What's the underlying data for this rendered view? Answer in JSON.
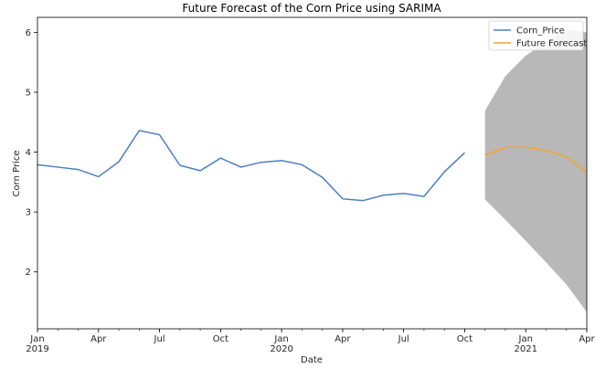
{
  "chart_data": {
    "type": "line",
    "title": "Future Forecast of the Corn Price using SARIMA",
    "xlabel": "Date",
    "ylabel": "Corn Price",
    "xlim": [
      "2019-01",
      "2021-04"
    ],
    "ylim": [
      1.05,
      6.25
    ],
    "grid": false,
    "legend_position": "top-right",
    "yticks": [
      2,
      3,
      4,
      5,
      6
    ],
    "x_ticks": [
      {
        "date": "2019-01",
        "label": "Jan",
        "year": "2019"
      },
      {
        "date": "2019-04",
        "label": "Apr",
        "year": ""
      },
      {
        "date": "2019-07",
        "label": "Jul",
        "year": ""
      },
      {
        "date": "2019-10",
        "label": "Oct",
        "year": ""
      },
      {
        "date": "2020-01",
        "label": "Jan",
        "year": "2020"
      },
      {
        "date": "2020-04",
        "label": "Apr",
        "year": ""
      },
      {
        "date": "2020-07",
        "label": "Jul",
        "year": ""
      },
      {
        "date": "2020-10",
        "label": "Oct",
        "year": ""
      },
      {
        "date": "2021-01",
        "label": "Jan",
        "year": "2021"
      },
      {
        "date": "2021-04",
        "label": "Apr",
        "year": ""
      }
    ],
    "series": [
      {
        "name": "Corn_Price",
        "color": "#4c7ec6",
        "points": [
          {
            "x": "2019-01",
            "y": 3.79
          },
          {
            "x": "2019-02",
            "y": 3.75
          },
          {
            "x": "2019-03",
            "y": 3.71
          },
          {
            "x": "2019-04",
            "y": 3.59
          },
          {
            "x": "2019-05",
            "y": 3.84
          },
          {
            "x": "2019-06",
            "y": 4.36
          },
          {
            "x": "2019-07",
            "y": 4.29
          },
          {
            "x": "2019-08",
            "y": 3.78
          },
          {
            "x": "2019-09",
            "y": 3.69
          },
          {
            "x": "2019-10",
            "y": 3.9
          },
          {
            "x": "2019-11",
            "y": 3.75
          },
          {
            "x": "2019-12",
            "y": 3.83
          },
          {
            "x": "2020-01",
            "y": 3.86
          },
          {
            "x": "2020-02",
            "y": 3.79
          },
          {
            "x": "2020-03",
            "y": 3.58
          },
          {
            "x": "2020-04",
            "y": 3.22
          },
          {
            "x": "2020-05",
            "y": 3.19
          },
          {
            "x": "2020-06",
            "y": 3.28
          },
          {
            "x": "2020-07",
            "y": 3.31
          },
          {
            "x": "2020-08",
            "y": 3.26
          },
          {
            "x": "2020-09",
            "y": 3.67
          },
          {
            "x": "2020-10",
            "y": 3.99
          }
        ]
      },
      {
        "name": "Future Forecast",
        "color": "#f5a623",
        "points": [
          {
            "x": "2020-11",
            "y": 3.95
          },
          {
            "x": "2020-12",
            "y": 4.08
          },
          {
            "x": "2021-01",
            "y": 4.08
          },
          {
            "x": "2021-02",
            "y": 4.03
          },
          {
            "x": "2021-03",
            "y": 3.92
          },
          {
            "x": "2021-04",
            "y": 3.66
          }
        ]
      }
    ],
    "confidence_band": {
      "color": "#b0b0b0",
      "points": [
        {
          "x": "2020-11",
          "lower": 3.21,
          "upper": 4.69
        },
        {
          "x": "2020-12",
          "lower": 2.87,
          "upper": 5.27
        },
        {
          "x": "2021-01",
          "lower": 2.52,
          "upper": 5.61
        },
        {
          "x": "2021-02",
          "lower": 2.16,
          "upper": 5.84
        },
        {
          "x": "2021-03",
          "lower": 1.79,
          "upper": 6.05
        },
        {
          "x": "2021-04",
          "lower": 1.33,
          "upper": 6.0
        }
      ]
    }
  }
}
